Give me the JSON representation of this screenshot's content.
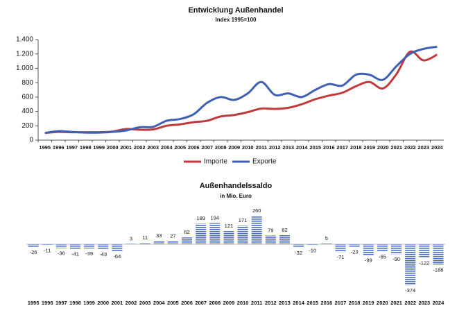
{
  "chart_data": [
    {
      "type": "line",
      "title": "Entwicklung Außenhandel",
      "subtitle": "Index 1995=100",
      "categories": [
        "1995",
        "1996",
        "1997",
        "1998",
        "1999",
        "2000",
        "2001",
        "2002",
        "2003",
        "2004",
        "2005",
        "2006",
        "2007",
        "2008",
        "2009",
        "2010",
        "2011",
        "2012",
        "2013",
        "2014",
        "2015",
        "2016",
        "2017",
        "2018",
        "2019",
        "2020",
        "2021",
        "2022",
        "2023",
        "2024"
      ],
      "series": [
        {
          "name": "Importe",
          "color": "#c0393b",
          "values": [
            100,
            115,
            110,
            110,
            110,
            120,
            155,
            145,
            150,
            200,
            220,
            250,
            270,
            330,
            350,
            390,
            440,
            435,
            450,
            500,
            570,
            620,
            660,
            750,
            810,
            720,
            920,
            1230,
            1110,
            1190
          ]
        },
        {
          "name": "Exporte",
          "color": "#3f5fb5",
          "values": [
            100,
            125,
            115,
            105,
            105,
            115,
            135,
            180,
            185,
            270,
            295,
            360,
            520,
            600,
            560,
            650,
            810,
            630,
            650,
            600,
            700,
            780,
            760,
            910,
            910,
            840,
            1030,
            1200,
            1270,
            1300
          ]
        }
      ],
      "ylim": [
        0,
        1400
      ],
      "yticks": [
        0,
        200,
        400,
        600,
        800,
        {
          "value": 1000,
          "label": "1.000"
        },
        {
          "value": 1200,
          "label": "1.200"
        },
        {
          "value": 1400,
          "label": "1.400"
        }
      ]
    },
    {
      "type": "bar",
      "title": "Außenhandelssaldo",
      "subtitle": "in Mio. Euro",
      "color": "#4a6fc1",
      "categories": [
        "1995",
        "1996",
        "1997",
        "1998",
        "1999",
        "2000",
        "2001",
        "2002",
        "2003",
        "2004",
        "2005",
        "2006",
        "2007",
        "2008",
        "2009",
        "2010",
        "2011",
        "2012",
        "2013",
        "2014",
        "2015",
        "2016",
        "2017",
        "2018",
        "2019",
        "2020",
        "2021",
        "2022",
        "2023",
        "2024"
      ],
      "values": [
        -26,
        -11,
        -36,
        -41,
        -39,
        -43,
        -64,
        3,
        11,
        33,
        27,
        62,
        189,
        194,
        121,
        171,
        260,
        79,
        82,
        -32,
        -10,
        5,
        -71,
        -23,
        -99,
        -65,
        -90,
        -374,
        -122,
        -188
      ]
    }
  ]
}
